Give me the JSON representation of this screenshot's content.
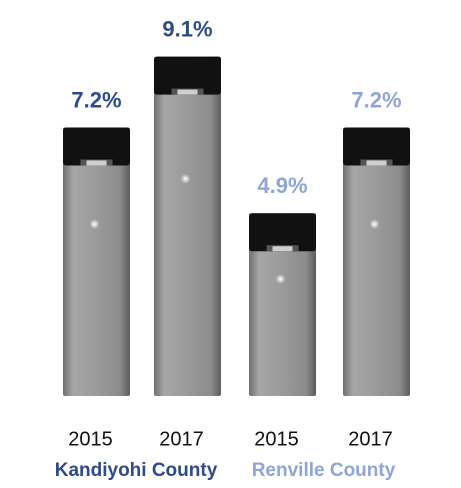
{
  "chart_data": {
    "type": "bar",
    "categories": [
      "2015",
      "2017",
      "2015",
      "2017"
    ],
    "values": [
      7.2,
      9.1,
      4.9,
      7.2
    ],
    "value_labels": [
      "7.2%",
      "9.1%",
      "4.9%",
      "7.2%"
    ],
    "groups": [
      {
        "name": "Kandiyohi County",
        "color": "#2d4a8a"
      },
      {
        "name": "Renville County",
        "color": "#8ea5d8"
      }
    ]
  }
}
